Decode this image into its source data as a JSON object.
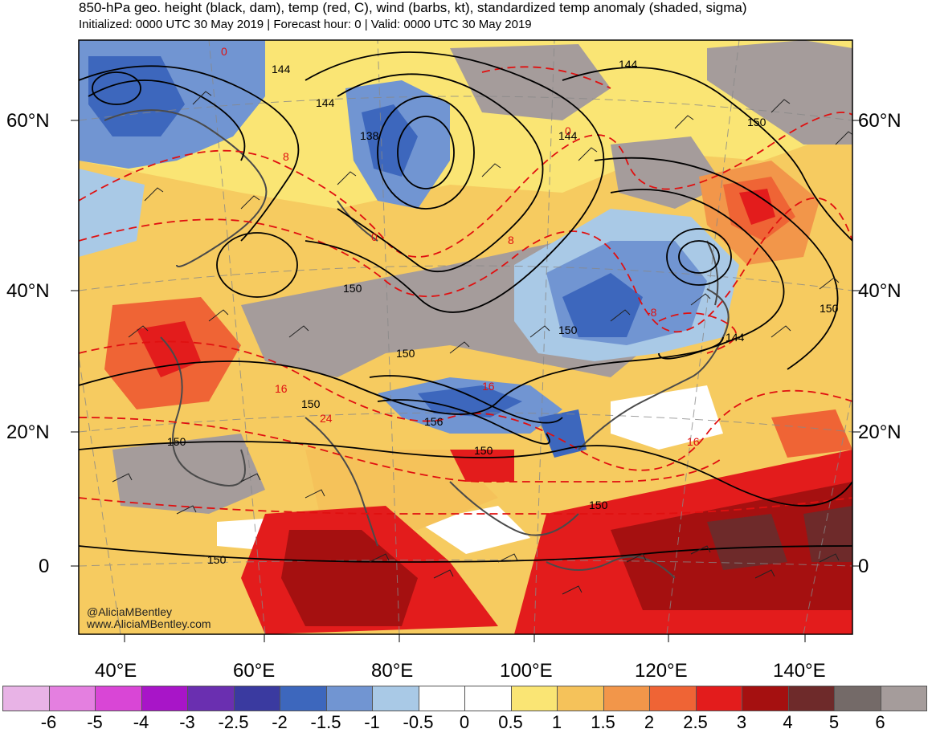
{
  "header": {
    "title": "850-hPa geo. height (black, dam), temp (red, C), wind (barbs, kt), standardized temp anomaly (shaded, sigma)",
    "subtitle": "Initialized: 0000 UTC 30 May 2019 | Forecast hour: 0 | Valid: 0000 UTC 30 May 2019"
  },
  "map": {
    "latitude_labels": [
      "60°N",
      "40°N",
      "20°N",
      "0"
    ],
    "longitude_labels": [
      "40°E",
      "60°E",
      "80°E",
      "100°E",
      "120°E",
      "140°E"
    ],
    "height_contour_labels": [
      "144",
      "144",
      "138",
      "144",
      "144",
      "150",
      "150",
      "150",
      "150",
      "150",
      "150",
      "156",
      "150",
      "150",
      "150",
      "150",
      "144",
      "150"
    ],
    "temp_contour_labels": [
      "0",
      "8",
      "0",
      "8",
      "16",
      "24",
      "16",
      "-8",
      "16",
      "0",
      "16"
    ],
    "credit_handle": "@AliciaMBentley",
    "credit_site": "www.AliciaMBentley.com"
  },
  "colorbar": {
    "labels": [
      "-6",
      "-5",
      "-4",
      "-3",
      "-2.5",
      "-2",
      "-1.5",
      "-1",
      "-0.5",
      "0",
      "0.5",
      "1",
      "1.5",
      "2",
      "2.5",
      "3",
      "4",
      "5",
      "6"
    ],
    "colors": [
      "#e8b3e6",
      "#e47fe0",
      "#d946d6",
      "#a815c8",
      "#6a2fb0",
      "#3a3aa0",
      "#3d67bd",
      "#7195d2",
      "#a9c9e6",
      "#ffffff",
      "#ffffff",
      "#fae574",
      "#f5c25a",
      "#f2964a",
      "#ef6435",
      "#e31c1c",
      "#a51010",
      "#6e2a2a",
      "#746a68",
      "#a59c9b"
    ]
  }
}
